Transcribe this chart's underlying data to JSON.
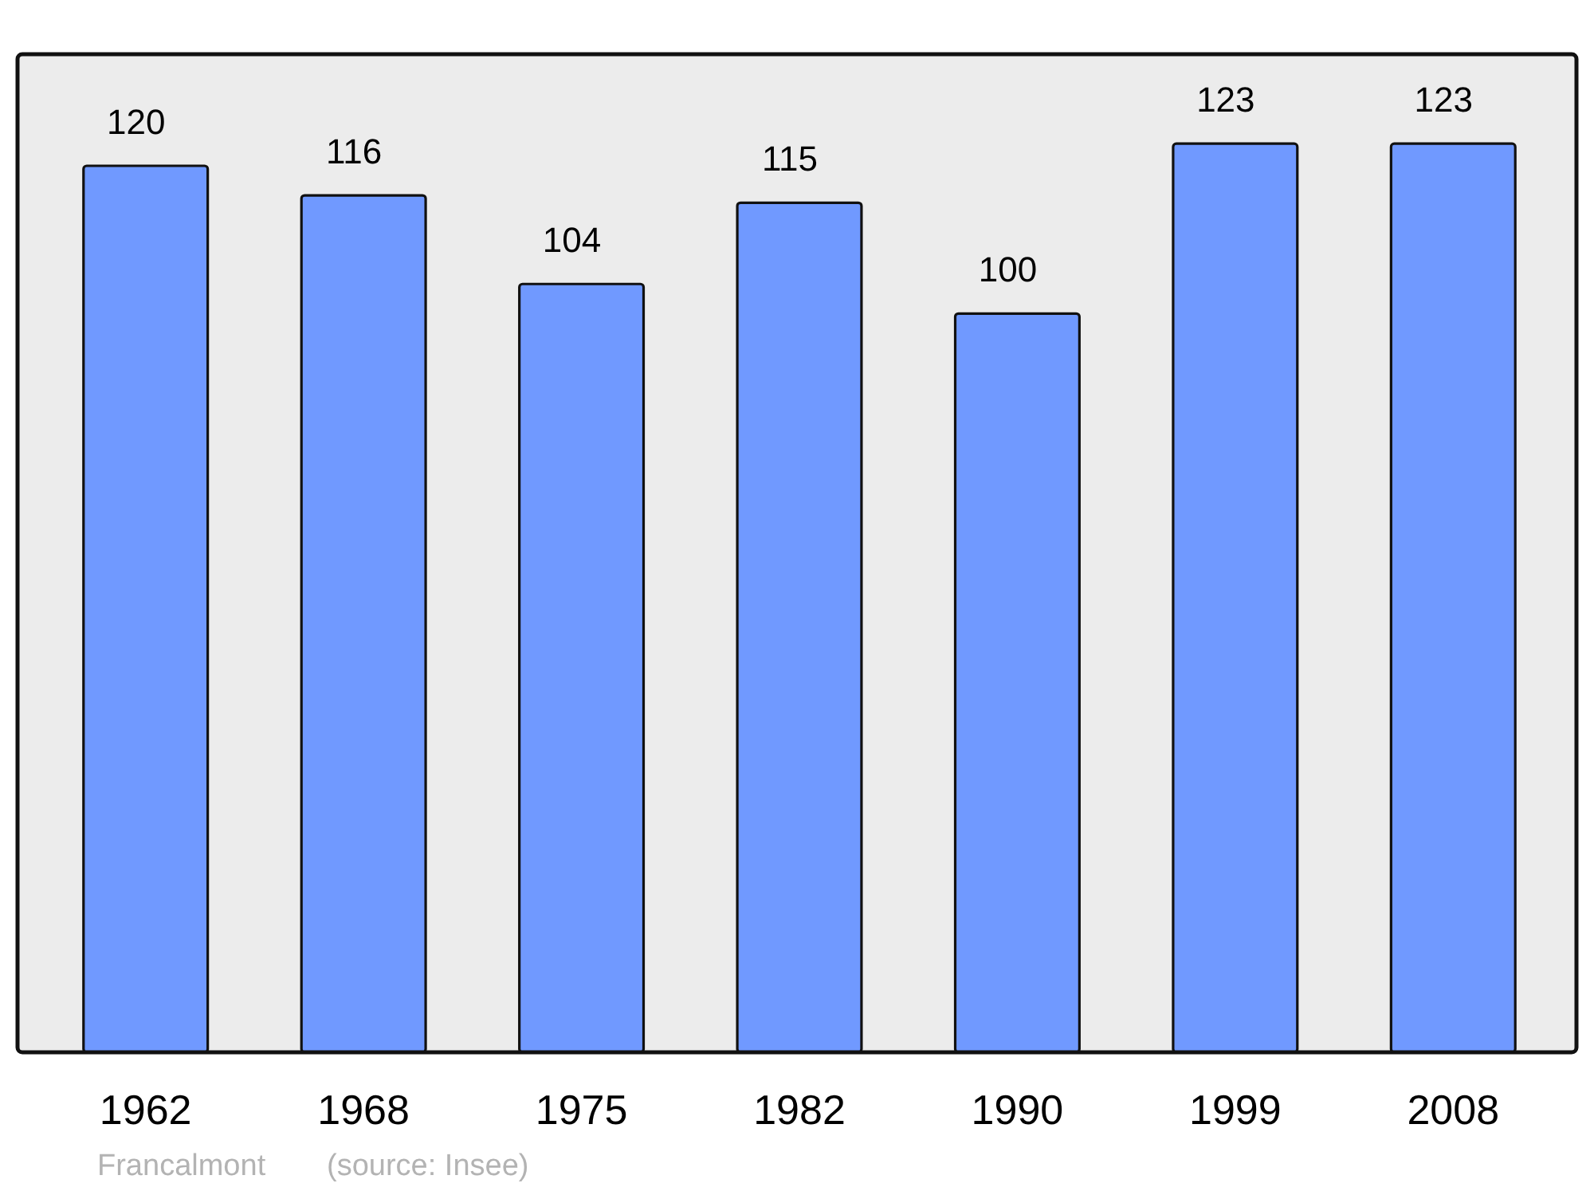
{
  "chart_data": {
    "type": "bar",
    "categories": [
      "1962",
      "1968",
      "1975",
      "1982",
      "1990",
      "1999",
      "2008"
    ],
    "values": [
      120,
      116,
      104,
      115,
      100,
      123,
      123
    ],
    "color": "#7099ff",
    "ylim": [
      0,
      135
    ],
    "data_labels": true,
    "annotations": [
      "Francalmont",
      "(source: Insee)"
    ]
  }
}
